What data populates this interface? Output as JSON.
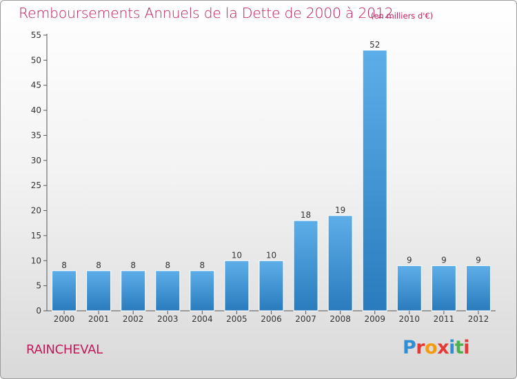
{
  "header": {
    "title": "Remboursements Annuels de la Dette de 2000 à 2012",
    "subtitle": "(en milliers d'€)"
  },
  "footer": {
    "commune": "RAINCHEVAL",
    "logo": "Proxiti"
  },
  "colors": {
    "accent": "#c2185b",
    "bar_top": "#5daee8",
    "bar_bottom": "#2a7bbd",
    "logo_letters": [
      "#2f8fd6",
      "#e53935",
      "#f39c12",
      "#e53935",
      "#2f8fd6",
      "#4caf50",
      "#e53935"
    ]
  },
  "chart_data": {
    "type": "bar",
    "categories": [
      "2000",
      "2001",
      "2002",
      "2003",
      "2004",
      "2005",
      "2006",
      "2007",
      "2008",
      "2009",
      "2010",
      "2011",
      "2012"
    ],
    "values": [
      8,
      8,
      8,
      8,
      8,
      10,
      10,
      18,
      19,
      52,
      9,
      9,
      9
    ],
    "ylim": [
      0,
      55
    ],
    "yticks": [
      0,
      5,
      10,
      15,
      20,
      25,
      30,
      35,
      40,
      45,
      50,
      55
    ],
    "grid": false,
    "data_labels": true
  }
}
